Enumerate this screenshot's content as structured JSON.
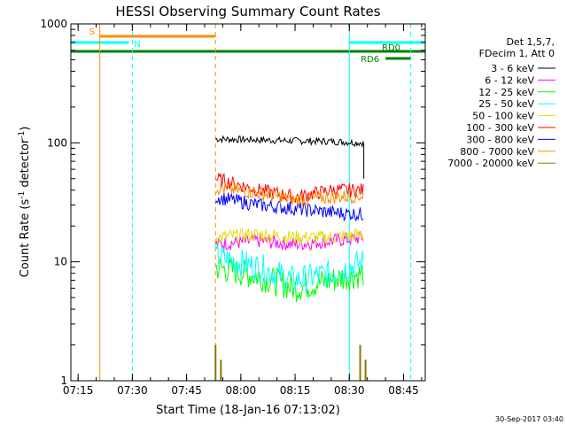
{
  "chart_data": {
    "type": "line",
    "title": "HESSI Observing Summary Count Rates",
    "xlabel": "Start Time (18-Jan-16 07:13:02)",
    "ylabel_main": "Count Rate (s",
    "ylabel_sup1": "-1",
    "ylabel_mid": " detector",
    "ylabel_sup2": "-1",
    "ylabel_end": ")",
    "y_scale": "log",
    "xlim": [
      "07:13",
      "08:51"
    ],
    "ylim": [
      1,
      1000
    ],
    "x_ticks": [
      "07:15",
      "07:30",
      "07:45",
      "08:00",
      "08:15",
      "08:30",
      "08:45"
    ],
    "y_ticks": [
      "1",
      "10",
      "100",
      "1000"
    ],
    "legend": {
      "header1": "Det 1,5,7,",
      "header2": "FDecim 1, Att 0",
      "placement": "right"
    },
    "series": [
      {
        "name": "3 - 6 keV",
        "color": "#000000",
        "times": [
          "07:53",
          "08:05",
          "08:15",
          "08:25",
          "08:34"
        ],
        "values": [
          108,
          106,
          104,
          103,
          100
        ]
      },
      {
        "name": "6 - 12 keV",
        "color": "#ff00ff",
        "times": [
          "07:53",
          "08:05",
          "08:15",
          "08:25",
          "08:34"
        ],
        "values": [
          14,
          15,
          14,
          15,
          16
        ]
      },
      {
        "name": "12 - 25 keV",
        "color": "#00ff00",
        "times": [
          "07:53",
          "08:05",
          "08:15",
          "08:25",
          "08:34"
        ],
        "values": [
          9,
          7.5,
          6,
          7,
          8
        ]
      },
      {
        "name": "25 - 50 keV",
        "color": "#00ffff",
        "times": [
          "07:53",
          "08:05",
          "08:15",
          "08:25",
          "08:34"
        ],
        "values": [
          11,
          9,
          7,
          8,
          10
        ]
      },
      {
        "name": "50 - 100 keV",
        "color": "#e0e000",
        "times": [
          "07:53",
          "08:05",
          "08:15",
          "08:25",
          "08:34"
        ],
        "values": [
          16,
          17,
          16,
          16,
          17
        ]
      },
      {
        "name": "100 - 300 keV",
        "color": "#ff0000",
        "times": [
          "07:53",
          "08:05",
          "08:15",
          "08:25",
          "08:34"
        ],
        "values": [
          50,
          40,
          35,
          40,
          40
        ]
      },
      {
        "name": "300 - 800 keV",
        "color": "#0000ff",
        "times": [
          "07:53",
          "08:05",
          "08:15",
          "08:25",
          "08:34"
        ],
        "values": [
          35,
          30,
          28,
          26,
          25
        ]
      },
      {
        "name": "800 - 7000 keV",
        "color": "#ff8c00",
        "times": [
          "07:53",
          "08:05",
          "08:15",
          "08:25",
          "08:34"
        ],
        "values": [
          42,
          38,
          33,
          35,
          36
        ]
      },
      {
        "name": "7000 - 20000 keV",
        "color": "#8b7500",
        "times": [
          "07:53",
          "07:54",
          "08:33",
          "08:34"
        ],
        "values": [
          2,
          1.5,
          2,
          1.5
        ]
      }
    ],
    "flags": [
      {
        "label": "S",
        "color": "#ff8c00",
        "start": "07:21",
        "end": "07:53"
      },
      {
        "label": "N",
        "color": "#00ffff",
        "start": "07:13",
        "end": "07:29"
      },
      {
        "label": "N",
        "color": "#00ffff",
        "start": "08:30",
        "end": "08:51"
      },
      {
        "label": "RD0",
        "color": "#008000",
        "start": "07:13",
        "end": "08:51"
      },
      {
        "label": "RD6",
        "color": "#008000",
        "start": "08:40",
        "end": "08:47"
      }
    ],
    "vlines": [
      {
        "time": "07:21",
        "color": "#ff8c00",
        "style": "solid"
      },
      {
        "time": "07:30",
        "color": "#00ffff",
        "style": "dashed"
      },
      {
        "time": "07:53",
        "color": "#ff8c00",
        "style": "dashed"
      },
      {
        "time": "08:30",
        "color": "#00ffff",
        "style": "solid"
      },
      {
        "time": "08:47",
        "color": "#00ffff",
        "style": "dashed"
      }
    ],
    "footer": "30-Sep-2017 03:40"
  }
}
